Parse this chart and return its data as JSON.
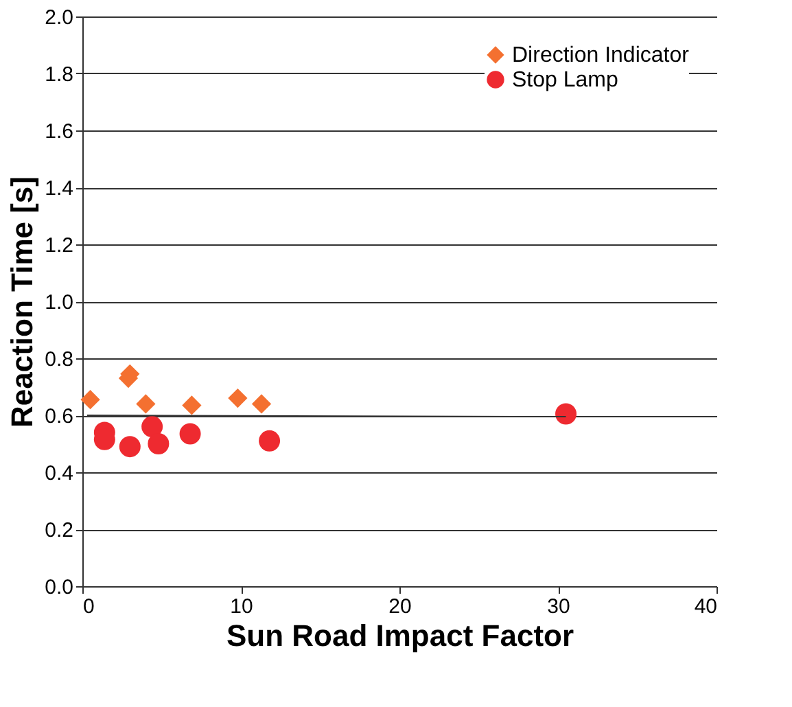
{
  "chart_data": {
    "type": "scatter",
    "xlabel": "Sun Road Impact Factor",
    "ylabel": "Reaction Time [s]",
    "xlim": [
      0,
      40
    ],
    "xticks": [
      0,
      10,
      20,
      30,
      40
    ],
    "ylim": [
      0,
      2.0
    ],
    "yticks": [
      {
        "value": 0,
        "label": "0.0"
      },
      {
        "value": 0.2,
        "label": "0.2"
      },
      {
        "value": 0.4,
        "label": "0.4"
      },
      {
        "value": 0.6,
        "label": "0.6"
      },
      {
        "value": 0.8,
        "label": "0.8"
      },
      {
        "value": 1.0,
        "label": "1.0"
      },
      {
        "value": 1.2,
        "label": "1.2"
      },
      {
        "value": 1.4,
        "label": "1.4"
      },
      {
        "value": 1.6,
        "label": "1.6"
      },
      {
        "value": 1.8,
        "label": "1.8"
      },
      {
        "value": 2.0,
        "label": "2.0"
      }
    ],
    "grid": "y",
    "legend": "top right",
    "series": [
      {
        "name": "Direction Indicator",
        "color": "#f47030",
        "marker": "diamond",
        "x": [
          0.5,
          2.9,
          3.0,
          4.0,
          6.9,
          9.8,
          11.3
        ],
        "values": [
          0.655,
          0.73,
          0.745,
          0.64,
          0.635,
          0.66,
          0.64
        ]
      },
      {
        "name": "Stop Lamp",
        "color": "#ee2a30",
        "marker": "circle",
        "x": [
          1.4,
          1.4,
          3.0,
          4.4,
          4.8,
          6.8,
          11.8,
          30.5
        ],
        "values": [
          0.54,
          0.515,
          0.49,
          0.56,
          0.5,
          0.535,
          0.51,
          0.605
        ]
      },
      {
        "type": "line",
        "color": "#333333",
        "x": [
          0.3,
          30.5
        ],
        "values": [
          0.6,
          0.595
        ]
      }
    ]
  }
}
